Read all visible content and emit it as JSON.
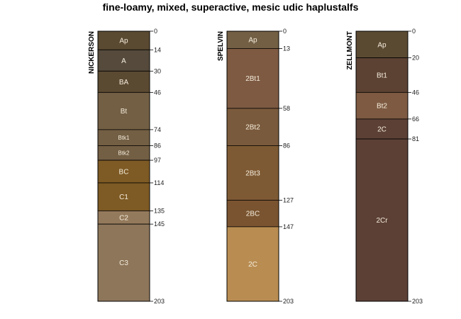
{
  "title": "fine-loamy, mixed, superactive, mesic udic haplustalfs",
  "chart_data": {
    "type": "soil-profile",
    "title": "fine-loamy, mixed, superactive, mesic udic haplustalfs",
    "depth_range": [
      0,
      203
    ],
    "profiles": [
      {
        "name": "NICKERSON",
        "horizons": [
          {
            "name": "Ap",
            "top": 0,
            "bottom": 14,
            "color": "#5b4a32"
          },
          {
            "name": "A",
            "top": 14,
            "bottom": 30,
            "color": "#554a3b"
          },
          {
            "name": "BA",
            "top": 30,
            "bottom": 46,
            "color": "#5b4a32"
          },
          {
            "name": "Bt",
            "top": 46,
            "bottom": 74,
            "color": "#735f44"
          },
          {
            "name": "Btk1",
            "top": 74,
            "bottom": 86,
            "color": "#735f44"
          },
          {
            "name": "Btk2",
            "top": 86,
            "bottom": 97,
            "color": "#735f44"
          },
          {
            "name": "BC",
            "top": 97,
            "bottom": 114,
            "color": "#7e5a24"
          },
          {
            "name": "C1",
            "top": 114,
            "bottom": 135,
            "color": "#7e5a24"
          },
          {
            "name": "C2",
            "top": 135,
            "bottom": 145,
            "color": "#947a5c"
          },
          {
            "name": "C3",
            "top": 145,
            "bottom": 203,
            "color": "#8d765a"
          }
        ],
        "depth_labels": [
          "0",
          "14",
          "30",
          "46",
          "74",
          "86",
          "97",
          "114",
          "135",
          "145",
          "203"
        ]
      },
      {
        "name": "SPELVIN",
        "horizons": [
          {
            "name": "Ap",
            "top": 0,
            "bottom": 13,
            "color": "#735f44"
          },
          {
            "name": "2Bt1",
            "top": 13,
            "bottom": 58,
            "color": "#7e5a42"
          },
          {
            "name": "2Bt2",
            "top": 58,
            "bottom": 86,
            "color": "#7a5a3c"
          },
          {
            "name": "2Bt3",
            "top": 86,
            "bottom": 127,
            "color": "#7e5a34"
          },
          {
            "name": "2BC",
            "top": 127,
            "bottom": 147,
            "color": "#7a5430"
          },
          {
            "name": "2C",
            "top": 147,
            "bottom": 203,
            "color": "#b98d52"
          }
        ],
        "depth_labels": [
          "0",
          "13",
          "58",
          "86",
          "127",
          "147",
          "203"
        ]
      },
      {
        "name": "ZELLMONT",
        "horizons": [
          {
            "name": "Ap",
            "top": 0,
            "bottom": 20,
            "color": "#5b4a32"
          },
          {
            "name": "Bt1",
            "top": 20,
            "bottom": 46,
            "color": "#5c4233"
          },
          {
            "name": "Bt2",
            "top": 46,
            "bottom": 66,
            "color": "#7e5a42"
          },
          {
            "name": "2C",
            "top": 66,
            "bottom": 81,
            "color": "#5c4036"
          },
          {
            "name": "2Cr",
            "top": 81,
            "bottom": 203,
            "color": "#5c4036"
          }
        ],
        "depth_labels": [
          "0",
          "20",
          "46",
          "66",
          "81",
          "203"
        ]
      }
    ]
  }
}
